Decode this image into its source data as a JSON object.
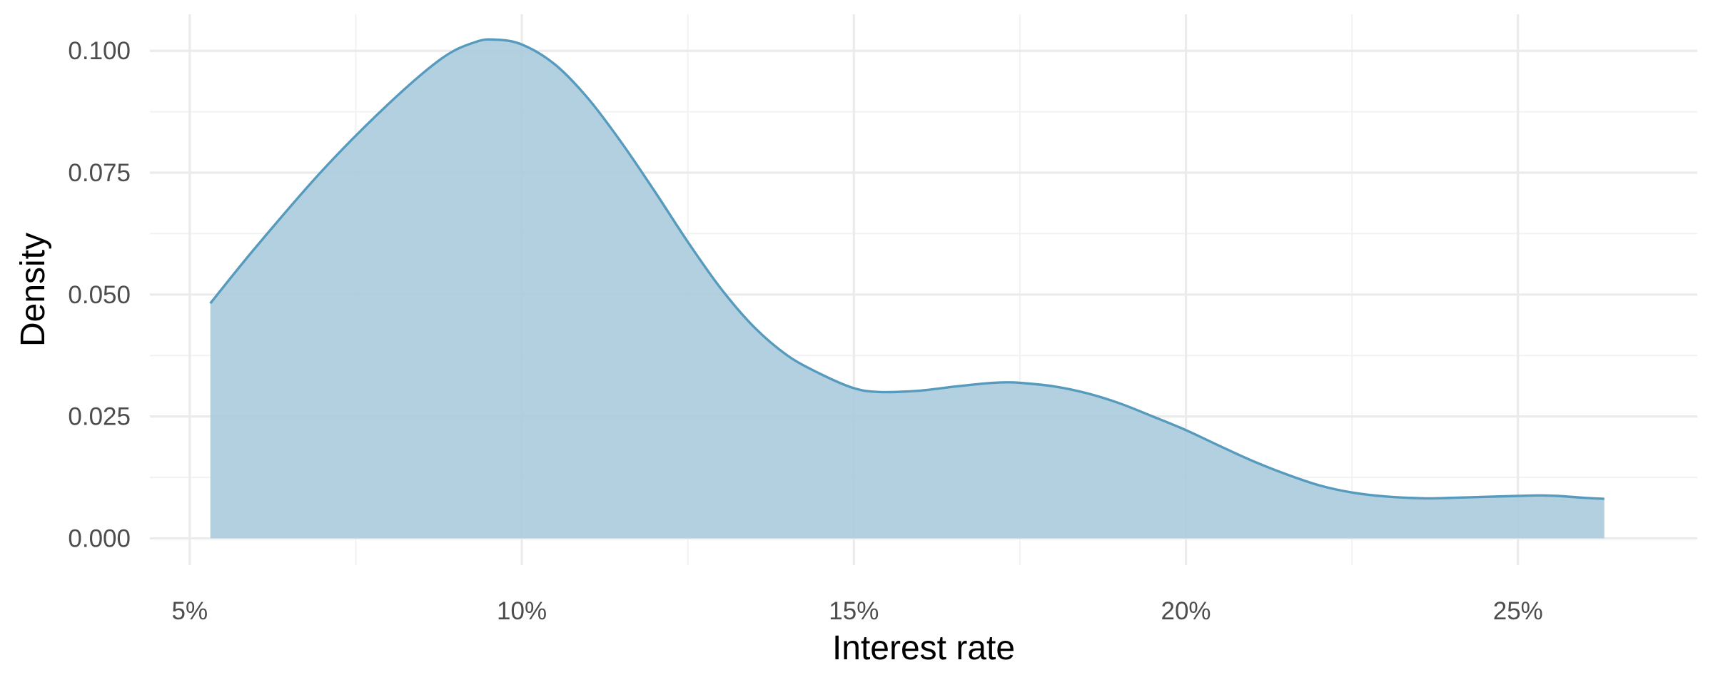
{
  "chart_data": {
    "type": "area",
    "title": "",
    "xlabel": "Interest rate",
    "ylabel": "Density",
    "xlim": [
      4.4,
      27.7
    ],
    "ylim": [
      -0.0055,
      0.1075
    ],
    "x_ticks": [
      5,
      10,
      15,
      20,
      25
    ],
    "x_tick_labels": [
      "5%",
      "10%",
      "15%",
      "20%",
      "25%"
    ],
    "y_ticks": [
      0.0,
      0.025,
      0.05,
      0.075,
      0.1
    ],
    "y_tick_labels": [
      "0.000",
      "0.025",
      "0.050",
      "0.075",
      "0.100"
    ],
    "grid": true,
    "legend": "none",
    "colors": {
      "fill": "#A8CADC",
      "line": "#569BBD"
    },
    "series": [
      {
        "x": [
          5.31,
          6.0,
          7.0,
          8.0,
          8.8,
          9.3,
          9.6,
          10.0,
          10.5,
          11.0,
          11.5,
          12.0,
          12.5,
          13.0,
          13.5,
          14.0,
          14.5,
          15.0,
          15.4,
          16.0,
          16.5,
          17.0,
          17.3,
          17.5,
          18.0,
          18.5,
          19.0,
          19.5,
          20.0,
          20.5,
          21.0,
          21.5,
          22.0,
          22.5,
          23.0,
          23.6,
          24.0,
          24.5,
          25.0,
          25.3,
          25.6,
          26.0,
          26.3
        ],
        "y": [
          0.0482,
          0.0598,
          0.0755,
          0.0892,
          0.0985,
          0.1018,
          0.1023,
          0.1013,
          0.0972,
          0.0902,
          0.0812,
          0.0712,
          0.0608,
          0.0512,
          0.0433,
          0.0375,
          0.0337,
          0.0308,
          0.03,
          0.0303,
          0.0311,
          0.0318,
          0.032,
          0.0319,
          0.0312,
          0.0298,
          0.0277,
          0.025,
          0.0222,
          0.019,
          0.0159,
          0.0132,
          0.0109,
          0.0094,
          0.0086,
          0.0082,
          0.0083,
          0.0085,
          0.0087,
          0.0088,
          0.0087,
          0.0083,
          0.0081
        ]
      }
    ]
  }
}
